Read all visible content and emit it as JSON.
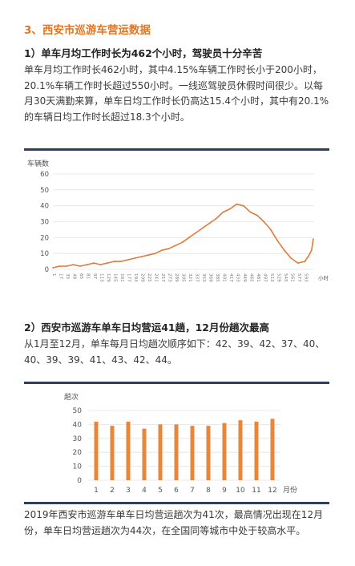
{
  "section_title": "3、西安市巡游车营运数据",
  "sub1_title": "1）单车月均工作时长为462个小时，驾驶员十分辛苦",
  "para1": "单车月均工作时长462小时，其中4.15%车辆工作时长小于200小时，20.1%车辆工作时长超过550小时。一线巡驾驶员休假时间很少。以每月30天满勤来算，单车日均工作时长仍高达15.4个小时，其中有20.1%的车辆日均工作时长超过18.3个小时。",
  "sub2_title": "2）西安市巡游车单车日均营运41趟，12月份趟次最高",
  "para2": "从1月至12月，单车每月日均趟次顺序如下：42、39、42、37、40、40、39、39、41、43、42、44。",
  "para3": "2019年西安市巡游车单车日均营运趟次为41次，最高情况出现在12月份，单车日均营运趟次为44次，在全国同等城市中处于较高水平。",
  "colors": {
    "accent": "#e8731a",
    "line": "#e07b39",
    "bar": "#e8863a",
    "rule": "#2e3e5c",
    "grid": "#e4e4e4"
  },
  "chart_data": [
    {
      "type": "line",
      "ylabel": "车辆数",
      "xunit": "小时",
      "ylim": [
        0,
        60
      ],
      "yticks": [
        0,
        10,
        20,
        30,
        40,
        50,
        60
      ],
      "xlim": [
        1,
        615
      ],
      "xticks": [
        1,
        17,
        33,
        49,
        65,
        81,
        97,
        113,
        129,
        145,
        161,
        177,
        193,
        209,
        225,
        241,
        257,
        273,
        289,
        305,
        321,
        337,
        353,
        369,
        385,
        401,
        417,
        433,
        449,
        465,
        481,
        497,
        513,
        529,
        545,
        561,
        577,
        593
      ],
      "grid": "horizontal",
      "x": [
        1,
        17,
        33,
        49,
        65,
        81,
        97,
        113,
        129,
        145,
        161,
        177,
        193,
        209,
        225,
        241,
        257,
        273,
        289,
        305,
        321,
        337,
        353,
        369,
        385,
        401,
        417,
        433,
        449,
        465,
        481,
        497,
        513,
        529,
        545,
        561,
        577,
        593,
        601,
        609,
        613
      ],
      "values": [
        1,
        2,
        2,
        3,
        2,
        3,
        4,
        3,
        4,
        5,
        5,
        6,
        7,
        8,
        9,
        10,
        12,
        13,
        15,
        17,
        20,
        23,
        26,
        29,
        32,
        36,
        38,
        41,
        40,
        36,
        34,
        30,
        25,
        18,
        12,
        7,
        4,
        5,
        8,
        12,
        19
      ]
    },
    {
      "type": "bar",
      "ylabel": "趟次",
      "xunit": "月份",
      "categories": [
        "1",
        "2",
        "3",
        "4",
        "5",
        "6",
        "7",
        "8",
        "9",
        "10",
        "11",
        "12"
      ],
      "values": [
        42,
        39,
        42,
        37,
        40,
        40,
        39,
        39,
        41,
        43,
        42,
        44
      ],
      "ylim": [
        0,
        50
      ],
      "yticks": [
        0,
        10,
        20,
        30,
        40,
        50
      ],
      "grid": "horizontal"
    }
  ]
}
